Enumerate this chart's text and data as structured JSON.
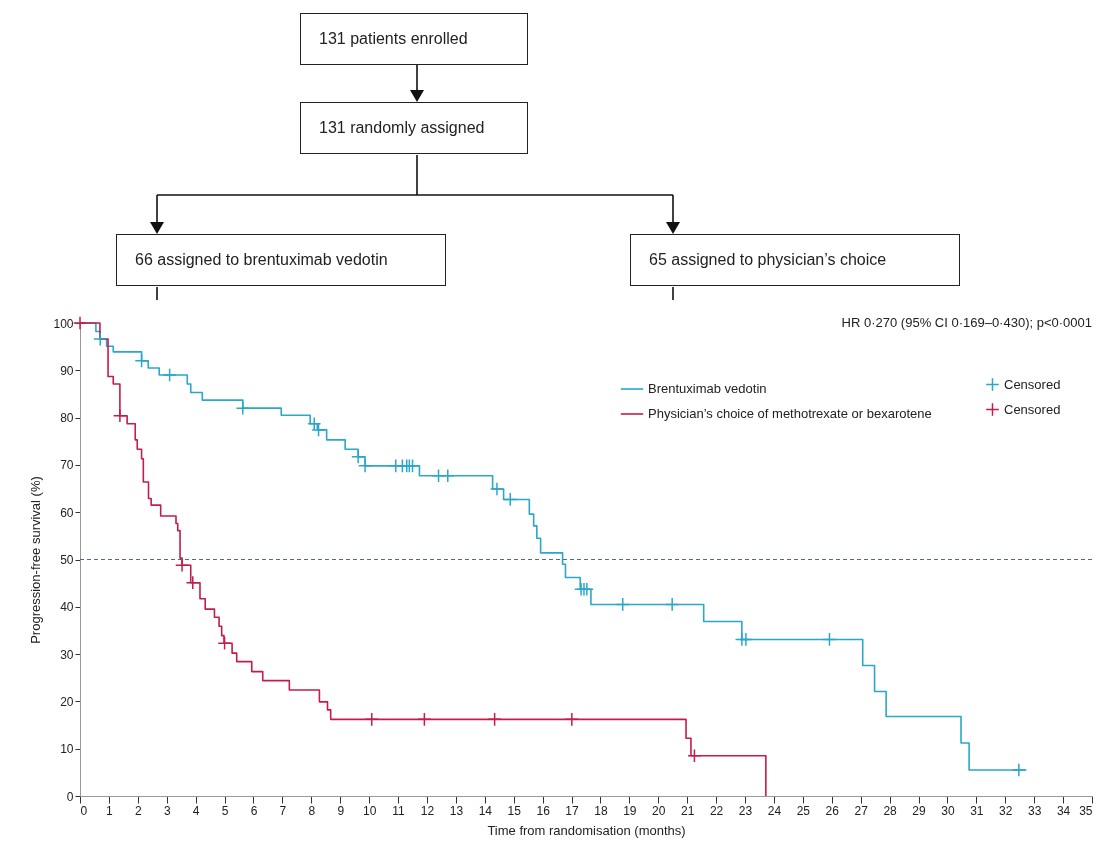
{
  "chart_data": [
    {
      "type": "other",
      "annotations": [
        "131 patients enrolled",
        "131 randomly assigned",
        "66 assigned to brentuximab vedotin",
        "65 assigned to physician’s choice"
      ]
    },
    {
      "type": "step",
      "xlabel": "Time from randomisation (months)",
      "ylabel": "Progression-free survival (%)",
      "xlim": [
        0,
        35
      ],
      "xticks": [
        0,
        1,
        2,
        3,
        4,
        5,
        6,
        7,
        8,
        9,
        10,
        11,
        12,
        13,
        14,
        15,
        16,
        17,
        18,
        19,
        20,
        21,
        22,
        23,
        24,
        25,
        26,
        27,
        28,
        29,
        30,
        31,
        32,
        33,
        34,
        35
      ],
      "ylim": [
        0,
        100
      ],
      "yticks": [
        0,
        10,
        20,
        30,
        40,
        50,
        60,
        70,
        80,
        90,
        100
      ],
      "grid": false,
      "legend": "top right",
      "annotations": [
        "HR 0·270 (95% CI 0·169–0·430); p<0·0001"
      ],
      "ref_lines": [
        {
          "axis": "y",
          "value": 50,
          "color": "#4f6e80",
          "line_style": "dashed"
        }
      ],
      "series": [
        {
          "name": "Brentuximab vedotin",
          "type": "step",
          "color": "#2aa7c9",
          "x": [
            0,
            0.55,
            0.7,
            0.92,
            1.15,
            2.13,
            2.36,
            2.74,
            3.71,
            3.83,
            4.23,
            5.63,
            6.96,
            7.96,
            8.21,
            8.53,
            9.17,
            9.62,
            9.86,
            11.74,
            14.27,
            14.65,
            15.54,
            15.69,
            15.8,
            15.93,
            16.69,
            16.79,
            17.3,
            17.67,
            21.57,
            22.89,
            27.07,
            27.48,
            27.88,
            30.47,
            30.75,
            32.73
          ],
          "values": [
            100,
            98.2,
            96.6,
            95.1,
            93.9,
            92.0,
            90.5,
            89.0,
            87.1,
            85.3,
            83.7,
            82.0,
            80.5,
            78.7,
            77.4,
            75.3,
            73.3,
            71.7,
            69.8,
            67.7,
            64.9,
            62.7,
            59.6,
            57.1,
            54.5,
            51.4,
            49.0,
            46.2,
            43.7,
            40.5,
            36.9,
            33.1,
            27.6,
            22.1,
            16.8,
            11.2,
            5.5,
            5.5
          ]
        },
        {
          "name": "Censored",
          "type": "scatter",
          "marker": "cross",
          "color": "#2aa7c9",
          "x": [
            0.7,
            2.13,
            3.1,
            5.63,
            8.1,
            8.25,
            9.62,
            9.86,
            10.92,
            11.15,
            11.3,
            11.39,
            11.5,
            12.4,
            12.72,
            14.42,
            14.88,
            17.33,
            17.43,
            17.53,
            18.77,
            20.48,
            22.89,
            23.03,
            25.92,
            32.47
          ],
          "values": [
            96.6,
            92.0,
            89.0,
            82.0,
            78.7,
            77.4,
            71.7,
            69.8,
            69.8,
            69.8,
            69.8,
            69.8,
            69.8,
            67.7,
            67.7,
            64.9,
            62.7,
            43.7,
            43.7,
            43.7,
            40.5,
            40.5,
            33.1,
            33.1,
            33.1,
            5.5
          ]
        },
        {
          "name": "Physician’s choice of methotrexate or bexarotene",
          "type": "step",
          "color": "#c21d4d",
          "x": [
            0,
            0.69,
            0.97,
            1.15,
            1.38,
            1.63,
            1.91,
            1.98,
            2.13,
            2.19,
            2.37,
            2.46,
            2.79,
            3.32,
            3.38,
            3.46,
            3.53,
            3.83,
            4.15,
            4.33,
            4.65,
            4.81,
            4.9,
            4.98,
            5.26,
            5.42,
            5.94,
            6.32,
            7.24,
            8.28,
            8.56,
            8.67,
            20.96,
            21.13,
            23.72,
            23.72
          ],
          "values": [
            100,
            96.6,
            88.7,
            87.1,
            80.4,
            78.7,
            75.3,
            73.3,
            71.3,
            66.4,
            62.9,
            61.5,
            59.2,
            57.6,
            56.1,
            50.3,
            48.8,
            45.1,
            41.7,
            39.5,
            37.8,
            35.9,
            33.9,
            32.3,
            30.2,
            28.4,
            26.3,
            24.4,
            22.4,
            19.9,
            18.2,
            16.2,
            12.2,
            8.5,
            8.5,
            0
          ]
        },
        {
          "name": "Censored",
          "type": "scatter",
          "marker": "cross",
          "color": "#c21d4d",
          "x": [
            0,
            1.38,
            3.53,
            3.9,
            5.0,
            10.09,
            11.91,
            14.34,
            17.01,
            21.25
          ],
          "values": [
            100,
            80.4,
            48.8,
            45.1,
            32.3,
            16.2,
            16.2,
            16.2,
            16.2,
            8.5
          ]
        }
      ]
    }
  ]
}
